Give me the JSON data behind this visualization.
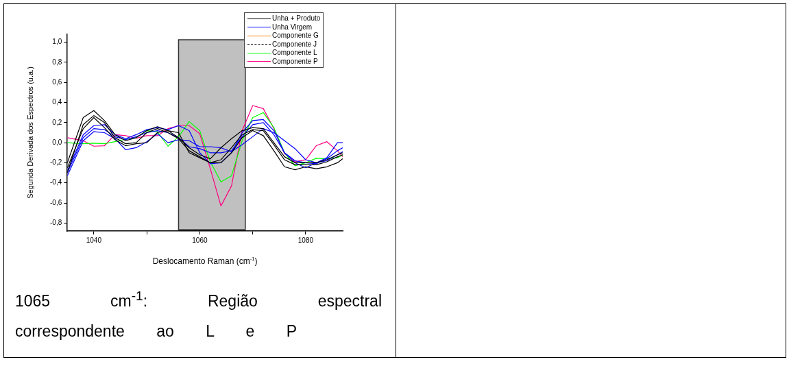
{
  "chart_data": {
    "type": "line",
    "xlabel": "Deslocamento Raman (cm$^{-1}$)",
    "ylabel": "Segunda Derivada dos Espectros (u.a.)",
    "x": [
      1035,
      1038,
      1040,
      1042,
      1044,
      1046,
      1048,
      1050,
      1052,
      1054,
      1056,
      1058,
      1060,
      1062,
      1064,
      1066,
      1068,
      1070,
      1072,
      1074,
      1076,
      1078,
      1080,
      1082,
      1084,
      1086,
      1087
    ],
    "xlim": [
      1035,
      1087
    ],
    "xticks": [
      1040,
      {
        "value": 1050,
        "label": null
      },
      1060,
      {
        "value": 1070,
        "label": null
      },
      1080
    ],
    "ylim": [
      -0.88,
      1.08
    ],
    "yticks": [
      {
        "value": -0.8,
        "label": "-0,8"
      },
      {
        "value": -0.6,
        "label": "-0,6"
      },
      {
        "value": -0.4,
        "label": "-0,4"
      },
      {
        "value": -0.2,
        "label": "-0,2"
      },
      {
        "value": 0,
        "label": "0,0"
      },
      {
        "value": 0.2,
        "label": "0,2"
      },
      {
        "value": 0.4,
        "label": "0,4"
      },
      {
        "value": 0.6,
        "label": "0,6"
      },
      {
        "value": 0.8,
        "label": "0,8"
      },
      {
        "value": 1,
        "label": "1,0"
      }
    ],
    "series": [
      {
        "name": "Unha + Produto",
        "color": "#000000",
        "values": [
          -0.2,
          0.25,
          0.32,
          0.22,
          0.08,
          0.02,
          0.05,
          0.12,
          0.16,
          0.12,
          0.05,
          -0.05,
          -0.12,
          -0.16,
          -0.05,
          0.04,
          0.12,
          0.15,
          0.14,
          0.0,
          -0.14,
          -0.2,
          -0.2,
          -0.2,
          -0.17,
          -0.12,
          -0.1
        ]
      },
      {
        "color": "#000000",
        "values": [
          -0.3,
          0.18,
          0.27,
          0.2,
          0.05,
          -0.01,
          0.0,
          0.1,
          0.14,
          0.1,
          0.04,
          -0.08,
          -0.14,
          -0.2,
          -0.17,
          -0.05,
          0.08,
          0.13,
          0.12,
          -0.02,
          -0.17,
          -0.22,
          -0.22,
          -0.22,
          -0.19,
          -0.14,
          -0.12
        ]
      },
      {
        "color": "#000000",
        "values": [
          -0.25,
          0.14,
          0.25,
          0.15,
          0.03,
          -0.03,
          -0.01,
          0.0,
          0.1,
          0.12,
          0.1,
          -0.1,
          -0.15,
          -0.2,
          -0.2,
          -0.1,
          0.05,
          0.12,
          0.07,
          -0.08,
          -0.24,
          -0.27,
          -0.24,
          -0.26,
          -0.24,
          -0.2,
          -0.16
        ]
      },
      {
        "name": "Unha Virgem",
        "color": "#0000ff",
        "values": [
          -0.28,
          0.08,
          0.17,
          0.18,
          0.08,
          0.04,
          0.08,
          0.13,
          0.15,
          0.13,
          0.17,
          0.12,
          -0.1,
          -0.21,
          -0.2,
          -0.1,
          0.1,
          0.22,
          0.23,
          0.12,
          -0.1,
          -0.2,
          -0.25,
          -0.2,
          -0.15,
          0.0,
          0.0
        ]
      },
      {
        "color": "#0000ff",
        "values": [
          -0.33,
          0.02,
          0.11,
          0.1,
          0.04,
          -0.07,
          -0.05,
          0.01,
          0.09,
          0.0,
          0.03,
          0.02,
          -0.04,
          -0.04,
          -0.05,
          -0.09,
          -0.02,
          0.06,
          0.14,
          0.1,
          0.02,
          -0.06,
          -0.17,
          -0.2,
          -0.18,
          -0.12,
          -0.09
        ]
      },
      {
        "color": "#0000ff",
        "values": [
          -0.3,
          0.05,
          0.14,
          0.13,
          0.06,
          0.03,
          0.06,
          0.1,
          0.12,
          0.1,
          0.05,
          -0.04,
          -0.06,
          -0.1,
          -0.1,
          -0.08,
          0.06,
          0.18,
          0.2,
          0.08,
          -0.1,
          -0.18,
          -0.2,
          -0.21,
          -0.16,
          -0.08,
          -0.05
        ]
      },
      {
        "name": "Componente G",
        "color": "#ff8000",
        "values": [
          null,
          null,
          null,
          null,
          null,
          null,
          null,
          null,
          null,
          null,
          null,
          null,
          null,
          null,
          null,
          null,
          null,
          null,
          null,
          null,
          null,
          null,
          null,
          null,
          null,
          null,
          null
        ]
      },
      {
        "name": "Componente J",
        "color": "#000000",
        "line_style": "dashed",
        "values": [
          null,
          null,
          null,
          null,
          null,
          null,
          null,
          null,
          null,
          null,
          null,
          null,
          null,
          null,
          null,
          null,
          null,
          null,
          null,
          null,
          null,
          null,
          null,
          null,
          null,
          null,
          null
        ]
      },
      {
        "name": "Componente L",
        "color": "#00ff00",
        "values": [
          0.0,
          -0.01,
          -0.005,
          -0.01,
          0.01,
          0.035,
          0.05,
          0.12,
          0.11,
          -0.035,
          0.06,
          0.21,
          0.12,
          -0.19,
          -0.39,
          -0.33,
          0.02,
          0.25,
          0.3,
          0.15,
          -0.1,
          -0.23,
          -0.2,
          -0.155,
          -0.16,
          -0.15,
          -0.12
        ]
      },
      {
        "name": "Componente P",
        "color": "#ff0080",
        "values": [
          0.05,
          0.02,
          -0.035,
          -0.03,
          0.08,
          0.07,
          0.045,
          0.07,
          0.07,
          0.14,
          0.17,
          0.17,
          0.09,
          -0.26,
          -0.63,
          -0.43,
          0.12,
          0.37,
          0.34,
          0.14,
          -0.11,
          -0.19,
          -0.17,
          -0.03,
          0.01,
          -0.08,
          -0.14
        ]
      }
    ],
    "bands": [
      {
        "axis": "x",
        "from": 1056,
        "to": 1068.6,
        "color": "#c0c0c0"
      }
    ],
    "legend": "top right",
    "grid": false,
    "annotations": [
      "1065 cm$^{-1}$: Região espectral correspondente ao L e P"
    ]
  }
}
